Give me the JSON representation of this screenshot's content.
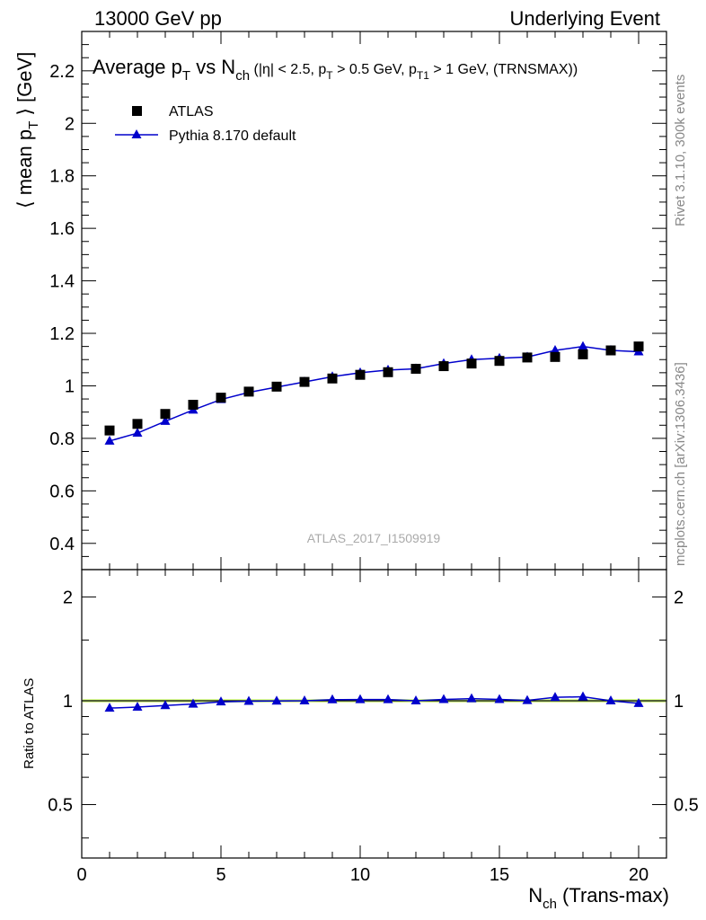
{
  "header": {
    "left": "13000 GeV pp",
    "right": "Underlying Event"
  },
  "title": {
    "main_1": "Average p",
    "main_1_sub": "T",
    "main_2": " vs N",
    "main_2_sub": "ch",
    "cond_1": " (|η| < 2.5, p",
    "cond_1_sub": "T",
    "cond_2": " > 0.5 GeV, p",
    "cond_2_sub": "T1",
    "cond_3": " > 1 GeV, (TRNSMAX))"
  },
  "legend": {
    "data_label": "ATLAS",
    "mc_label": "Pythia 8.170 default"
  },
  "watermark": "ATLAS_2017_I1509919",
  "side_text": {
    "rivet": "Rivet 3.1.10,  300k events",
    "mcplots": "mcplots.cern.ch [arXiv:1306.3436]"
  },
  "axes": {
    "ylabel_main_1": "⟨ mean p",
    "ylabel_main_sub": "T",
    "ylabel_main_2": " ⟩ [GeV]",
    "ylabel_ratio": "Ratio to ATLAS",
    "xlabel_1": "N",
    "xlabel_sub": "ch",
    "xlabel_2": " (Trans-max)"
  },
  "colors": {
    "data": "#000000",
    "mc": "#0000cc",
    "band": "#ccff66"
  },
  "chart_data": [
    {
      "type": "line",
      "panel": "main",
      "title": "Average pT vs Nch (|η| < 2.5, pT > 0.5 GeV, pT1 > 1 GeV, (TRNSMAX))",
      "xlabel": "Nch (Trans-max)",
      "ylabel": "⟨ mean pT ⟩ [GeV]",
      "xlim": [
        0,
        21
      ],
      "ylim": [
        0.3,
        2.35
      ],
      "yticks": [
        0.4,
        0.6,
        0.8,
        1,
        1.2,
        1.4,
        1.6,
        1.8,
        2,
        2.2
      ],
      "ytick_labels": [
        "0.4",
        "0.6",
        "0.8",
        "1",
        "1.2",
        "1.4",
        "1.6",
        "1.8",
        "2",
        "2.2"
      ],
      "x": [
        1,
        2,
        3,
        4,
        5,
        6,
        7,
        8,
        9,
        10,
        11,
        12,
        13,
        14,
        15,
        16,
        17,
        18,
        19,
        20
      ],
      "series": [
        {
          "name": "ATLAS",
          "values": [
            0.83,
            0.855,
            0.893,
            0.928,
            0.955,
            0.978,
            0.997,
            1.015,
            1.028,
            1.042,
            1.052,
            1.065,
            1.075,
            1.085,
            1.095,
            1.108,
            1.11,
            1.12,
            1.135,
            1.15
          ]
        },
        {
          "name": "Pythia 8.170 default",
          "values": [
            0.79,
            0.82,
            0.865,
            0.908,
            0.948,
            0.975,
            0.995,
            1.015,
            1.035,
            1.05,
            1.06,
            1.065,
            1.085,
            1.1,
            1.105,
            1.11,
            1.135,
            1.15,
            1.135,
            1.13
          ]
        }
      ]
    },
    {
      "type": "line",
      "panel": "ratio",
      "ylabel": "Ratio to ATLAS",
      "xlim": [
        0,
        21
      ],
      "ylim": [
        0.35,
        2.4
      ],
      "yscale": "log",
      "yticks": [
        0.5,
        1,
        2
      ],
      "ytick_labels": [
        "0.5",
        "1",
        "2"
      ],
      "xticks": [
        0,
        5,
        10,
        15,
        20
      ],
      "xtick_labels": [
        "0",
        "5",
        "10",
        "15",
        "20"
      ],
      "x": [
        1,
        2,
        3,
        4,
        5,
        6,
        7,
        8,
        9,
        10,
        11,
        12,
        13,
        14,
        15,
        16,
        17,
        18,
        19,
        20
      ],
      "series": [
        {
          "name": "Pythia 8.170 default / ATLAS",
          "values": [
            0.952,
            0.959,
            0.969,
            0.978,
            0.993,
            0.997,
            0.998,
            1.0,
            1.007,
            1.008,
            1.008,
            1.0,
            1.009,
            1.014,
            1.009,
            1.002,
            1.023,
            1.027,
            1.0,
            0.983
          ]
        }
      ]
    }
  ]
}
